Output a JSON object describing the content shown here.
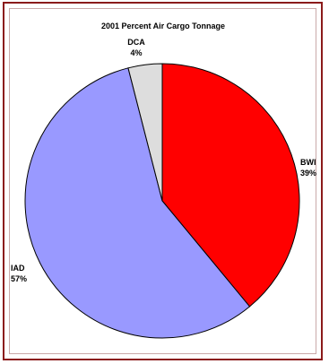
{
  "chart_data": {
    "type": "pie",
    "title": "2001 Percent Air Cargo Tonnage",
    "slices": [
      {
        "label": "BWI",
        "value": 39,
        "value_label": "39%",
        "color": "#ff0000"
      },
      {
        "label": "IAD",
        "value": 57,
        "value_label": "57%",
        "color": "#9999ff"
      },
      {
        "label": "DCA",
        "value": 4,
        "value_label": "4%",
        "color": "#dddddd"
      }
    ],
    "start": "12 o'clock",
    "direction": "clockwise",
    "legend": "none"
  }
}
